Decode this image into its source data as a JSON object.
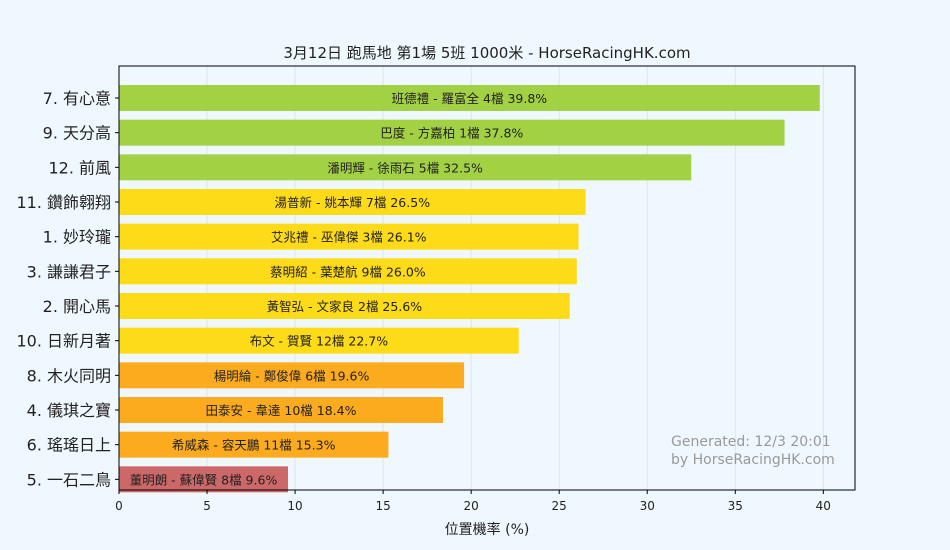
{
  "chart_data": {
    "type": "bar",
    "orientation": "horizontal",
    "title": "3月12日  跑馬地  第1場  5班  1000米 - HorseRacingHK.com",
    "xlabel": "位置機率 (%)",
    "ylabel": "",
    "xlim": [
      0,
      41.8
    ],
    "xticks": [
      0,
      5,
      10,
      15,
      20,
      25,
      30,
      35,
      40
    ],
    "grid": "vertical",
    "categories": [
      "7. 有心意",
      "9. 天分高",
      "12. 前風",
      "11. 鑽飾翱翔",
      "1. 妙玲瓏",
      "3. 謙謙君子",
      "2. 開心馬",
      "10. 日新月著",
      "8. 木火同明",
      "4. 儀琪之寶",
      "6. 瑤瑤日上",
      "5. 一石二鳥"
    ],
    "values": [
      39.8,
      37.8,
      32.5,
      26.5,
      26.1,
      26.0,
      25.6,
      22.7,
      19.6,
      18.4,
      15.3,
      9.6
    ],
    "bar_labels": [
      "班德禮 - 羅富全 4檔  39.8%",
      "巴度 - 方嘉柏 1檔  37.8%",
      "潘明輝 - 徐雨石 5檔  32.5%",
      "湯普新 - 姚本輝 7檔  26.5%",
      "艾兆禮 - 巫偉傑 3檔  26.1%",
      "蔡明紹 - 葉楚航 9檔  26.0%",
      "黃智弘 - 文家良 2檔  25.6%",
      "布文 - 賀賢 12檔  22.7%",
      "楊明綸 - 鄭俊偉 6檔  19.6%",
      "田泰安 - 韋達 10檔  18.4%",
      "希威森 - 容天鵬 11檔  15.3%",
      "董明朗 - 蘇偉賢 8檔  9.6%"
    ],
    "colors": [
      "#a3d144",
      "#a3d144",
      "#a3d144",
      "#fddb18",
      "#fddb18",
      "#fddb18",
      "#fddb18",
      "#fddb18",
      "#fcab1e",
      "#fcab1e",
      "#fcab1e",
      "#cd6868"
    ],
    "annotation": [
      "Generated: 12/3 20:01",
      "by HorseRacingHK.com"
    ]
  }
}
